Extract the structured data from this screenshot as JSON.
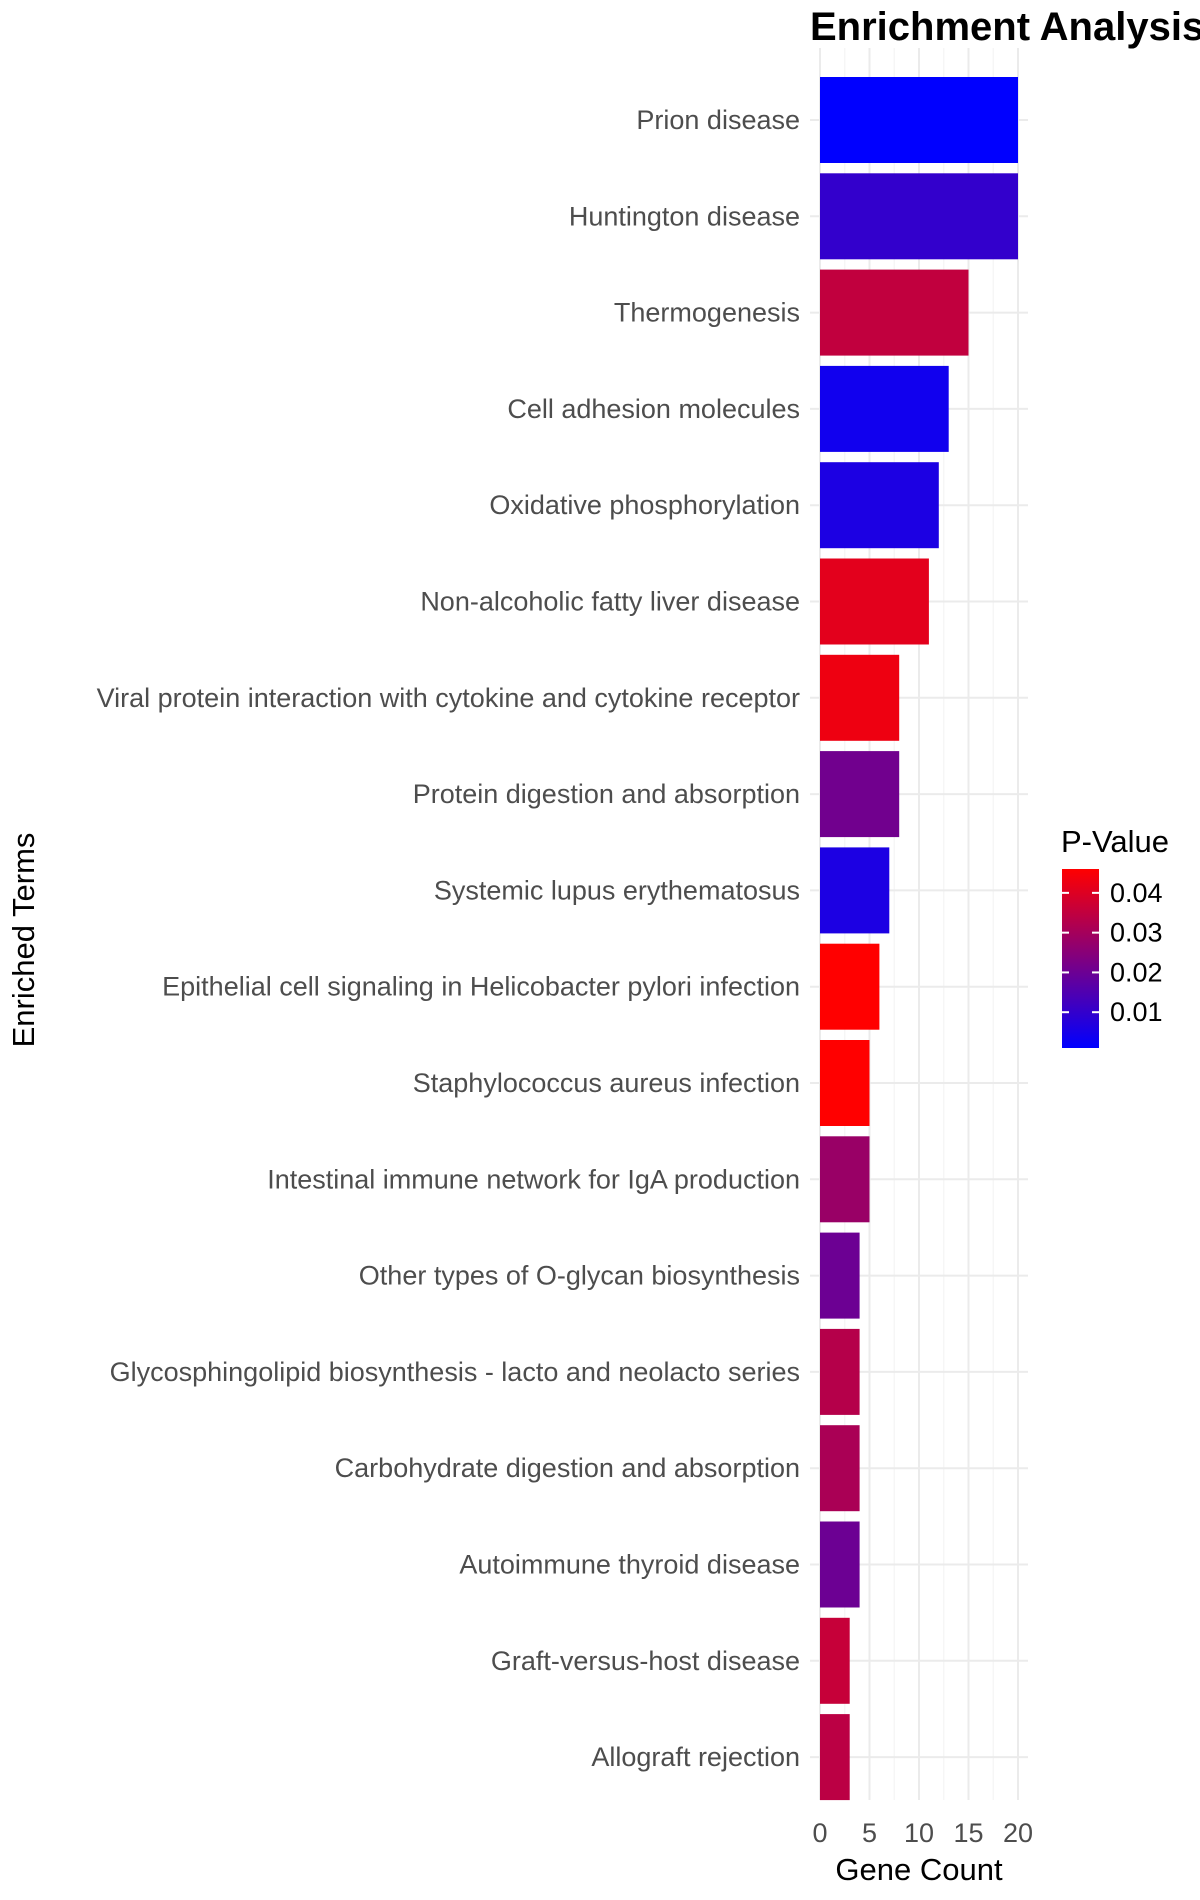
{
  "chart_data": {
    "type": "bar",
    "orientation": "horizontal",
    "title": "Enrichment Analysis",
    "xlabel": "Gene Count",
    "ylabel": "Enriched Terms",
    "xlim": [
      0,
      21
    ],
    "x_ticks": [
      0,
      5,
      10,
      15,
      20
    ],
    "grid": true,
    "legend_position": "right",
    "categories": [
      "Prion disease",
      "Huntington disease",
      "Thermogenesis",
      "Cell adhesion molecules",
      "Oxidative phosphorylation",
      "Non-alcoholic fatty liver disease",
      "Viral protein interaction with cytokine and cytokine receptor",
      "Protein digestion and absorption",
      "Systemic lupus erythematosus",
      "Epithelial cell signaling in Helicobacter pylori infection",
      "Staphylococcus aureus infection",
      "Intestinal immune network for IgA production",
      "Other types of O-glycan biosynthesis",
      "Glycosphingolipid biosynthesis - lacto and neolacto series",
      "Carbohydrate digestion and absorption",
      "Autoimmune thyroid disease",
      "Graft-versus-host disease",
      "Allograft rejection"
    ],
    "values": [
      20,
      20,
      15,
      13,
      12,
      11,
      8,
      8,
      7,
      6,
      5,
      5,
      4,
      4,
      4,
      4,
      3,
      3
    ],
    "p_values": [
      0.001,
      0.01,
      0.035,
      0.004,
      0.006,
      0.041,
      0.043,
      0.021,
      0.006,
      0.046,
      0.046,
      0.028,
      0.02,
      0.033,
      0.031,
      0.02,
      0.036,
      0.034
    ],
    "color_scale": {
      "title": "P-Value",
      "low_color": "#0000ff",
      "high_color": "#ff0000",
      "range": [
        0.001,
        0.046
      ],
      "ticks": [
        0.04,
        0.03,
        0.02,
        0.01
      ],
      "tick_labels": [
        "0.04",
        "0.03",
        "0.02",
        "0.01"
      ]
    }
  }
}
